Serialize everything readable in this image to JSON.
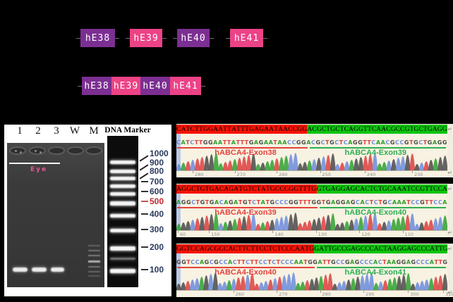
{
  "panelA": {
    "row1": [
      {
        "label": "hE38",
        "fill": "purple"
      },
      {
        "label": "hE39",
        "fill": "pink"
      },
      {
        "label": "hE40",
        "fill": "purple"
      },
      {
        "label": "hE41",
        "fill": "pink"
      }
    ],
    "row2": [
      {
        "label": "hE38",
        "fill": "purple"
      },
      {
        "label": "hE39",
        "fill": "pink"
      },
      {
        "label": "hE40",
        "fill": "purple"
      },
      {
        "label": "hE41",
        "fill": "pink"
      }
    ]
  },
  "gel": {
    "lanes": [
      "1",
      "2",
      "3",
      "W",
      "M"
    ],
    "annotation": "Eye",
    "marker_title": "DNA Marker",
    "marker_labels": [
      {
        "size": "1000",
        "tick": "slant",
        "red": false
      },
      {
        "size": "900",
        "tick": "slant",
        "red": false
      },
      {
        "size": "800",
        "tick": "slant",
        "red": false
      },
      {
        "size": "700",
        "tick": "dash",
        "red": false
      },
      {
        "size": "600",
        "tick": "dash",
        "red": false
      },
      {
        "size": "500",
        "tick": "dash",
        "red": true
      },
      {
        "size": "400",
        "tick": "dash",
        "red": false
      },
      {
        "size": "300",
        "tick": "dash",
        "red": false
      },
      {
        "size": "200",
        "tick": "dash",
        "red": false
      },
      {
        "size": "100",
        "tick": "dash",
        "red": false
      }
    ]
  },
  "chromatogram_rows": [
    {
      "red_seq": "CATCTTGGAATTATTTGAGAATAACCGG",
      "green_seq": "ACGCTGCTCAGGTTCAACGCCGTGCTGAGG",
      "red_label": "hABCA4-Exon38",
      "green_label": "hABCA4-Exon39",
      "ticks": [
        {
          "t": "280",
          "f": 0.06
        },
        {
          "t": "270",
          "f": 0.215
        },
        {
          "t": "260",
          "f": 0.37
        },
        {
          "t": "250",
          "f": 0.53
        },
        {
          "t": "240",
          "f": 0.695
        },
        {
          "t": "230",
          "f": 0.87
        }
      ]
    },
    {
      "red_seq": "AGGCTGTGACAGATGTCTATGCCCGGTTTG",
      "green_seq": "GTGAGGAGCACTCTGCAAATCCGTTCCA",
      "red_label": "hABCA4-Exon39",
      "green_label": "hABCA4-Exon40",
      "ticks": [
        {
          "t": "60",
          "f": 0.005
        },
        {
          "t": "150",
          "f": 0.12
        },
        {
          "t": "140",
          "f": 0.355
        },
        {
          "t": "130",
          "f": 0.515
        },
        {
          "t": "120",
          "f": 0.675
        },
        {
          "t": "110",
          "f": 0.835
        }
      ]
    },
    {
      "red_seq": "GGTCCAGCGCCACTTCTTCCTCTCCCAATG",
      "green_seq": "GATTGCCGAGCCCACTAAGGAGCCCATTG",
      "red_label": "hABCA4-Exon40",
      "green_label": "hABCA4-Exon41",
      "ticks": [
        {
          "t": "260",
          "f": 0.21
        },
        {
          "t": "270",
          "f": 0.37
        },
        {
          "t": "280",
          "f": 0.53
        },
        {
          "t": "290",
          "f": 0.69
        },
        {
          "t": "300",
          "f": 0.855
        },
        {
          "t": "310",
          "f": 0.985
        }
      ]
    }
  ],
  "colors": {
    "purple": "#7c2f92",
    "pink": "#ec4386",
    "highlight_red": "#fa1200",
    "highlight_green": "#0cc40c",
    "exon_label_red": "#e3433c",
    "exon_label_green": "#2fae52",
    "marker_label": "#2a3a5e",
    "marker_label_red": "#c1272d",
    "base_A": "#2fa12f",
    "base_C": "#6c8cdc",
    "base_G": "#4a4a4a",
    "base_T": "#dd4040",
    "return_glyph": "↵"
  }
}
